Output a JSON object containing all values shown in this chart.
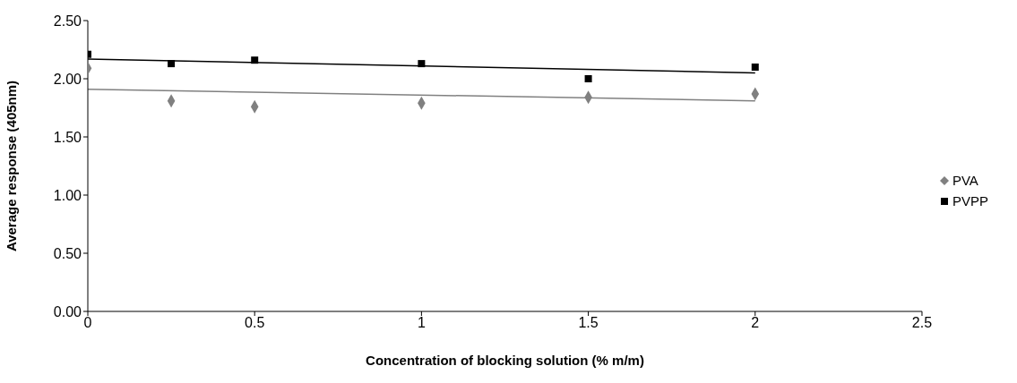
{
  "chart_data": {
    "type": "scatter",
    "xlabel": "Concentration of blocking solution (% m/m)",
    "ylabel": "Average response (405nm)",
    "xlim": [
      0,
      2.5
    ],
    "xticks": [
      0,
      0.5,
      1,
      1.5,
      2,
      2.5
    ],
    "ylim": [
      0,
      2.5
    ],
    "yticks": [
      {
        "value": 0,
        "label": "0.00"
      },
      {
        "value": 0.5,
        "label": "0.50"
      },
      {
        "value": 1,
        "label": "1.00"
      },
      {
        "value": 1.5,
        "label": "1.50"
      },
      {
        "value": 2,
        "label": "2.00"
      },
      {
        "value": 2.5,
        "label": "2.50"
      }
    ],
    "series": [
      {
        "name": "PVA",
        "color": "#808080",
        "marker": "diamond",
        "x": [
          0,
          0.25,
          0.5,
          1,
          1.5,
          2
        ],
        "values": [
          2.09,
          1.81,
          1.76,
          1.79,
          1.84,
          1.87
        ]
      },
      {
        "name": "PVPP",
        "color": "#000000",
        "marker": "square",
        "x": [
          0,
          0.25,
          0.5,
          1,
          1.5,
          2
        ],
        "values": [
          2.21,
          2.13,
          2.16,
          2.13,
          2.0,
          2.1
        ]
      },
      {
        "type": "line",
        "color": "#808080",
        "x": [
          0,
          2
        ],
        "values": [
          1.91,
          1.81
        ]
      },
      {
        "type": "line",
        "color": "#000000",
        "x": [
          0,
          2
        ],
        "values": [
          2.17,
          2.05
        ]
      }
    ],
    "legend": "right",
    "grid": false
  }
}
